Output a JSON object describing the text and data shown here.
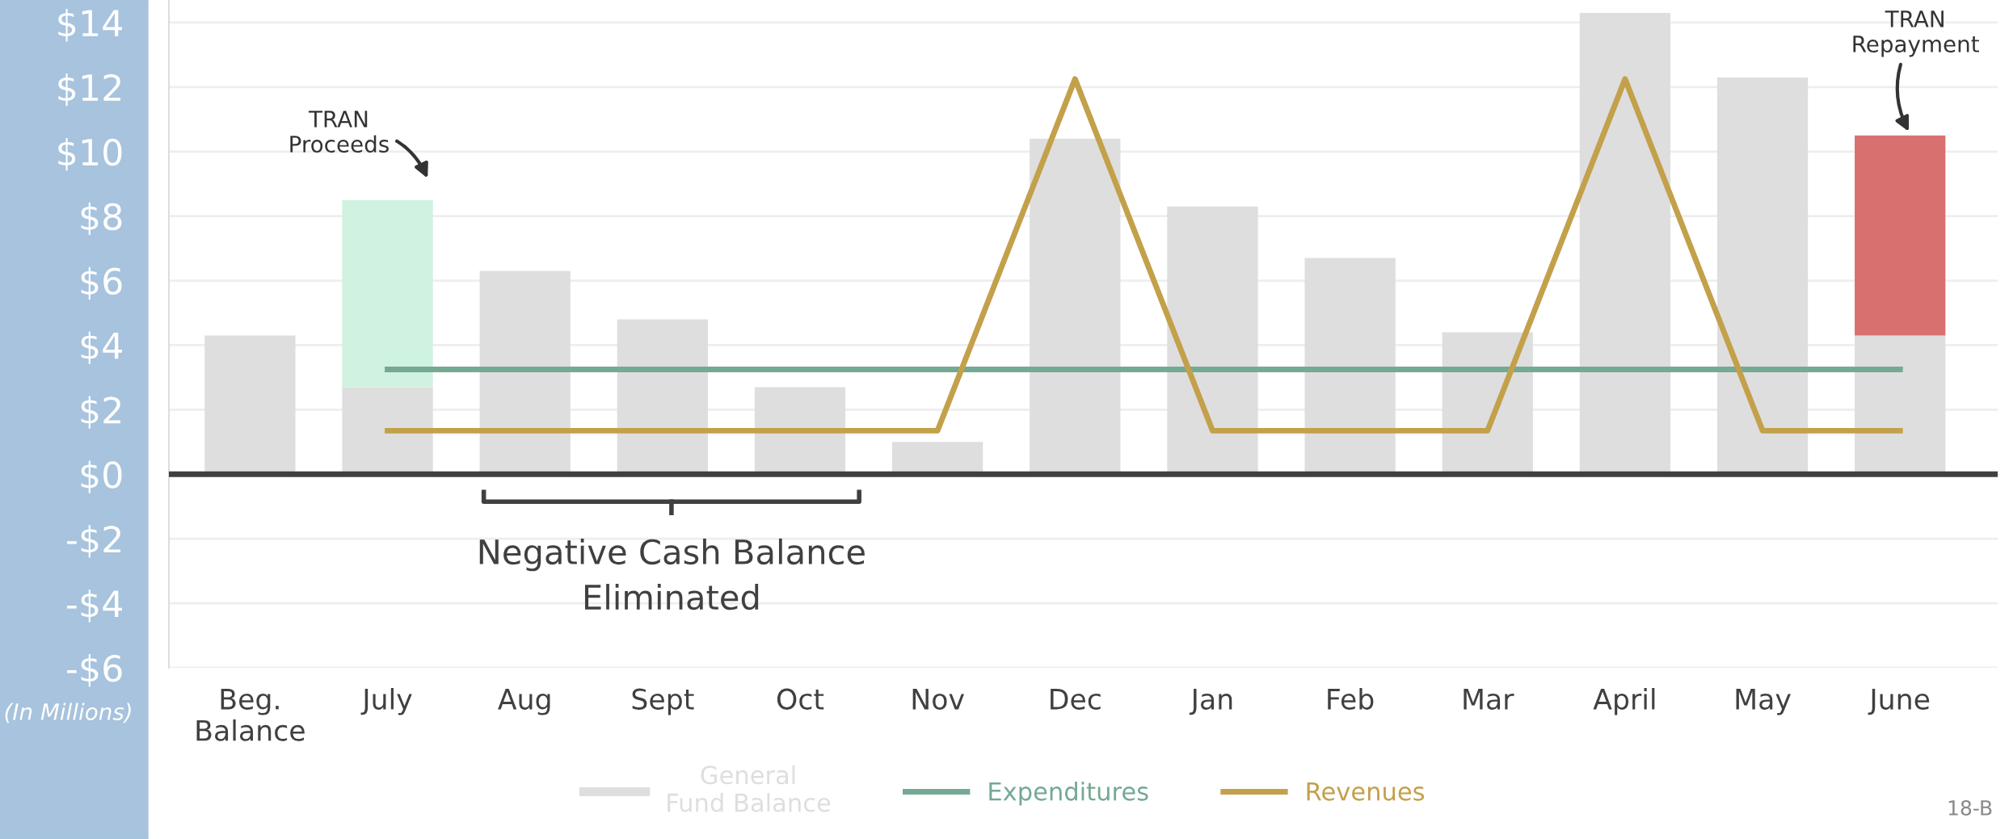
{
  "chart_data": {
    "type": "bar",
    "stacked": true,
    "categories": [
      "Beg.\nBalance",
      "July",
      "Aug",
      "Sept",
      "Oct",
      "Nov",
      "Dec",
      "Jan",
      "Feb",
      "Mar",
      "April",
      "May",
      "June"
    ],
    "series": [
      {
        "name": "General\nFund Balance",
        "color": "#dedede",
        "values": [
          4.3,
          2.7,
          6.3,
          4.8,
          2.7,
          1.0,
          10.4,
          8.3,
          6.7,
          4.4,
          14.3,
          12.3,
          4.3
        ]
      },
      {
        "colors": [
          "#d0f2e0",
          "#d0f2e0",
          "#d0f2e0",
          "#d0f2e0",
          "#d0f2e0",
          "#d0f2e0",
          "#d0f2e0",
          "#d0f2e0",
          "#d0f2e0",
          "#d0f2e0",
          "#d0f2e0",
          "#d0f2e0",
          "#d97070"
        ],
        "values": [
          null,
          5.8,
          null,
          null,
          null,
          null,
          null,
          null,
          null,
          null,
          null,
          null,
          6.2
        ]
      },
      {
        "name": "Expenditures",
        "type": "line",
        "color": "#74a994",
        "values": [
          null,
          3.25,
          3.25,
          3.25,
          3.25,
          3.25,
          3.25,
          3.25,
          3.25,
          3.25,
          3.25,
          3.25,
          3.25
        ]
      },
      {
        "name": "Revenues",
        "type": "line",
        "color": "#c3a04a",
        "values": [
          null,
          1.35,
          1.35,
          1.35,
          1.35,
          1.35,
          12.25,
          1.35,
          1.35,
          1.35,
          12.25,
          1.35,
          1.35
        ]
      }
    ],
    "ylim": [
      -6,
      14.7
    ],
    "yticks": [
      {
        "value": -6,
        "label": "-$6"
      },
      {
        "value": -4,
        "label": "-$4"
      },
      {
        "value": -2,
        "label": "-$2"
      },
      {
        "value": 0,
        "label": "$0"
      },
      {
        "value": 2,
        "label": "$2"
      },
      {
        "value": 4,
        "label": "$4"
      },
      {
        "value": 6,
        "label": "$6"
      },
      {
        "value": 8,
        "label": "$8"
      },
      {
        "value": 10,
        "label": "$10"
      },
      {
        "value": 12,
        "label": "$12"
      },
      {
        "value": 14,
        "label": "$14"
      }
    ],
    "ylabel": "(In Millions)",
    "grid": "y",
    "legend": "bottom",
    "ref_lines": [
      {
        "axis": "y",
        "value": 0,
        "color": "#404040"
      }
    ],
    "annotations": [
      "TRAN\nProceeds",
      "TRAN\nRepayment",
      "Negative Cash Balance\nEliminated",
      "18-B"
    ]
  }
}
